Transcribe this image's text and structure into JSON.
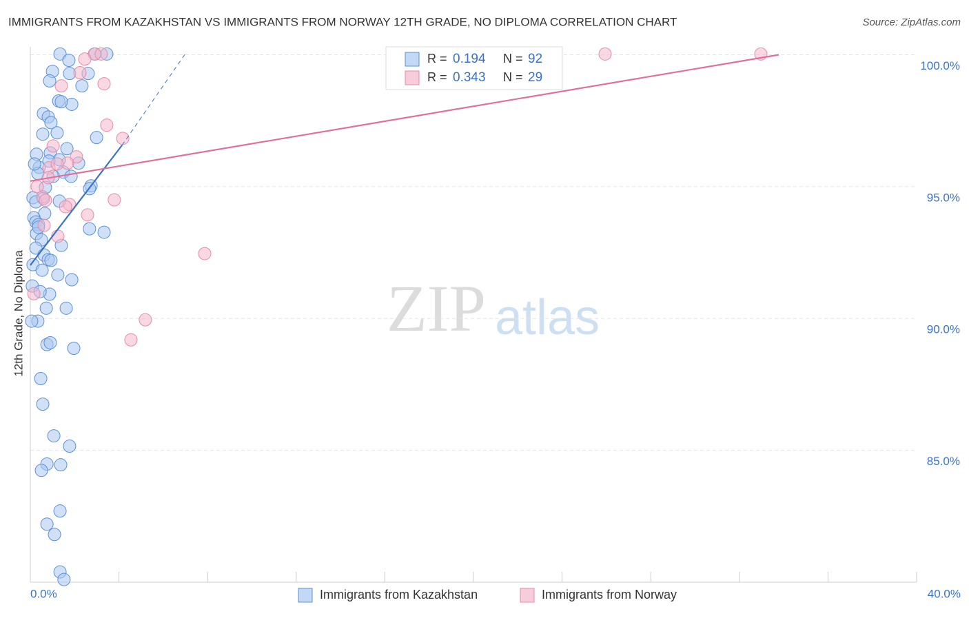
{
  "chart_data": {
    "type": "scatter",
    "title": "IMMIGRANTS FROM KAZAKHSTAN VS IMMIGRANTS FROM NORWAY 12TH GRADE, NO DIPLOMA CORRELATION CHART",
    "source": "Source: ZipAtlas.com",
    "y_label": "12th Grade, No Diploma",
    "watermark": [
      "ZIP",
      "atlas"
    ],
    "stat_labels": [
      "R = ",
      "N = "
    ],
    "xlim": [
      0,
      40
    ],
    "ylim": [
      80,
      100.3
    ],
    "xticks": [
      {
        "value": 0,
        "label": "0.0%"
      },
      {
        "value": 4,
        "label": null
      },
      {
        "value": 8,
        "label": null
      },
      {
        "value": 12,
        "label": null
      },
      {
        "value": 16,
        "label": null
      },
      {
        "value": 20,
        "label": null
      },
      {
        "value": 24,
        "label": null
      },
      {
        "value": 28,
        "label": null
      },
      {
        "value": 32,
        "label": null
      },
      {
        "value": 36,
        "label": null
      },
      {
        "value": 40,
        "label": "40.0%"
      }
    ],
    "yticks": [
      {
        "value": 85,
        "label": "85.0%"
      },
      {
        "value": 90,
        "label": "90.0%"
      },
      {
        "value": 95,
        "label": "95.0%"
      },
      {
        "value": 100,
        "label": "100.0%"
      }
    ],
    "grid": true,
    "series": [
      {
        "name": "Immigrants from Kazakhstan",
        "color": "#a9c8f0",
        "stroke": "#5b8fd6",
        "line_color": "#3a72c8",
        "r": 0.194,
        "n": 92,
        "x": [
          1.34,
          3.45,
          2.92,
          1.74,
          1.0,
          1.77,
          2.61,
          0.87,
          2.33,
          1.28,
          1.87,
          1.4,
          0.59,
          0.81,
          0.93,
          0.56,
          1.21,
          2.99,
          1.65,
          0.28,
          0.9,
          1.31,
          0.84,
          2.18,
          0.4,
          1.49,
          0.34,
          1.03,
          1.84,
          2.74,
          2.67,
          0.68,
          0.12,
          0.59,
          1.31,
          0.25,
          0.65,
          0.16,
          0.25,
          0.37,
          0.28,
          2.67,
          3.33,
          0.5,
          1.4,
          0.25,
          0.62,
          0.81,
          0.93,
          0.12,
          0.53,
          1.24,
          1.87,
          0.09,
          0.87,
          0.44,
          0.72,
          1.62,
          0.34,
          0.06,
          0.75,
          0.9,
          1.96,
          0.47,
          0.56,
          1.06,
          1.77,
          0.75,
          1.37,
          0.5,
          1.34,
          0.75,
          1.09,
          1.34,
          1.52,
          0.19,
          0.37
        ],
        "values": [
          100.03,
          100.03,
          100.03,
          99.79,
          99.37,
          99.29,
          99.29,
          99.01,
          98.82,
          98.25,
          98.12,
          98.22,
          97.77,
          97.64,
          97.43,
          96.99,
          97.04,
          96.86,
          96.44,
          96.23,
          96.28,
          96.02,
          95.97,
          95.89,
          95.73,
          95.55,
          95.5,
          95.39,
          95.39,
          95.03,
          94.92,
          94.97,
          94.58,
          94.55,
          94.45,
          94.42,
          93.98,
          93.82,
          93.66,
          93.56,
          93.22,
          93.4,
          93.27,
          92.98,
          92.77,
          92.67,
          92.41,
          92.23,
          92.2,
          92.04,
          91.83,
          91.65,
          91.47,
          91.23,
          90.92,
          91.02,
          90.39,
          90.39,
          89.9,
          89.9,
          89.01,
          89.08,
          88.87,
          87.72,
          86.75,
          85.55,
          85.16,
          84.48,
          84.45,
          84.24,
          82.7,
          82.2,
          81.81,
          80.39,
          80.1,
          95.86,
          93.46
        ],
        "trend_x": [
          0,
          4.14,
          7.03
        ],
        "trend_y": [
          92.02,
          96.57,
          100.08
        ],
        "trend_dash": [
          false,
          true
        ]
      },
      {
        "name": "Immigrants from Norway",
        "color": "#f5b8cc",
        "stroke": "#e58aa8",
        "line_color": "#e0709a",
        "r": 0.343,
        "n": 29,
        "x": [
          2.89,
          3.2,
          2.46,
          2.24,
          1.4,
          3.33,
          3.45,
          4.17,
          1.03,
          2.08,
          1.68,
          0.84,
          1.21,
          0.81,
          0.31,
          0.56,
          0.68,
          1.77,
          1.59,
          3.79,
          2.58,
          0.62,
          1.24,
          7.87,
          0.16,
          5.19,
          4.54,
          25.94,
          32.97
        ],
        "values": [
          100.03,
          100.03,
          99.84,
          99.32,
          98.82,
          98.9,
          97.33,
          96.83,
          96.54,
          96.13,
          95.89,
          95.71,
          95.86,
          95.34,
          95.0,
          94.61,
          94.48,
          94.32,
          94.24,
          94.5,
          93.93,
          93.53,
          93.12,
          92.46,
          90.94,
          89.95,
          89.19,
          100.03,
          100.03
        ],
        "trend_x": [
          0,
          33.78
        ],
        "trend_y": [
          95.21,
          100.0
        ],
        "trend_dash": [
          false
        ]
      }
    ]
  }
}
